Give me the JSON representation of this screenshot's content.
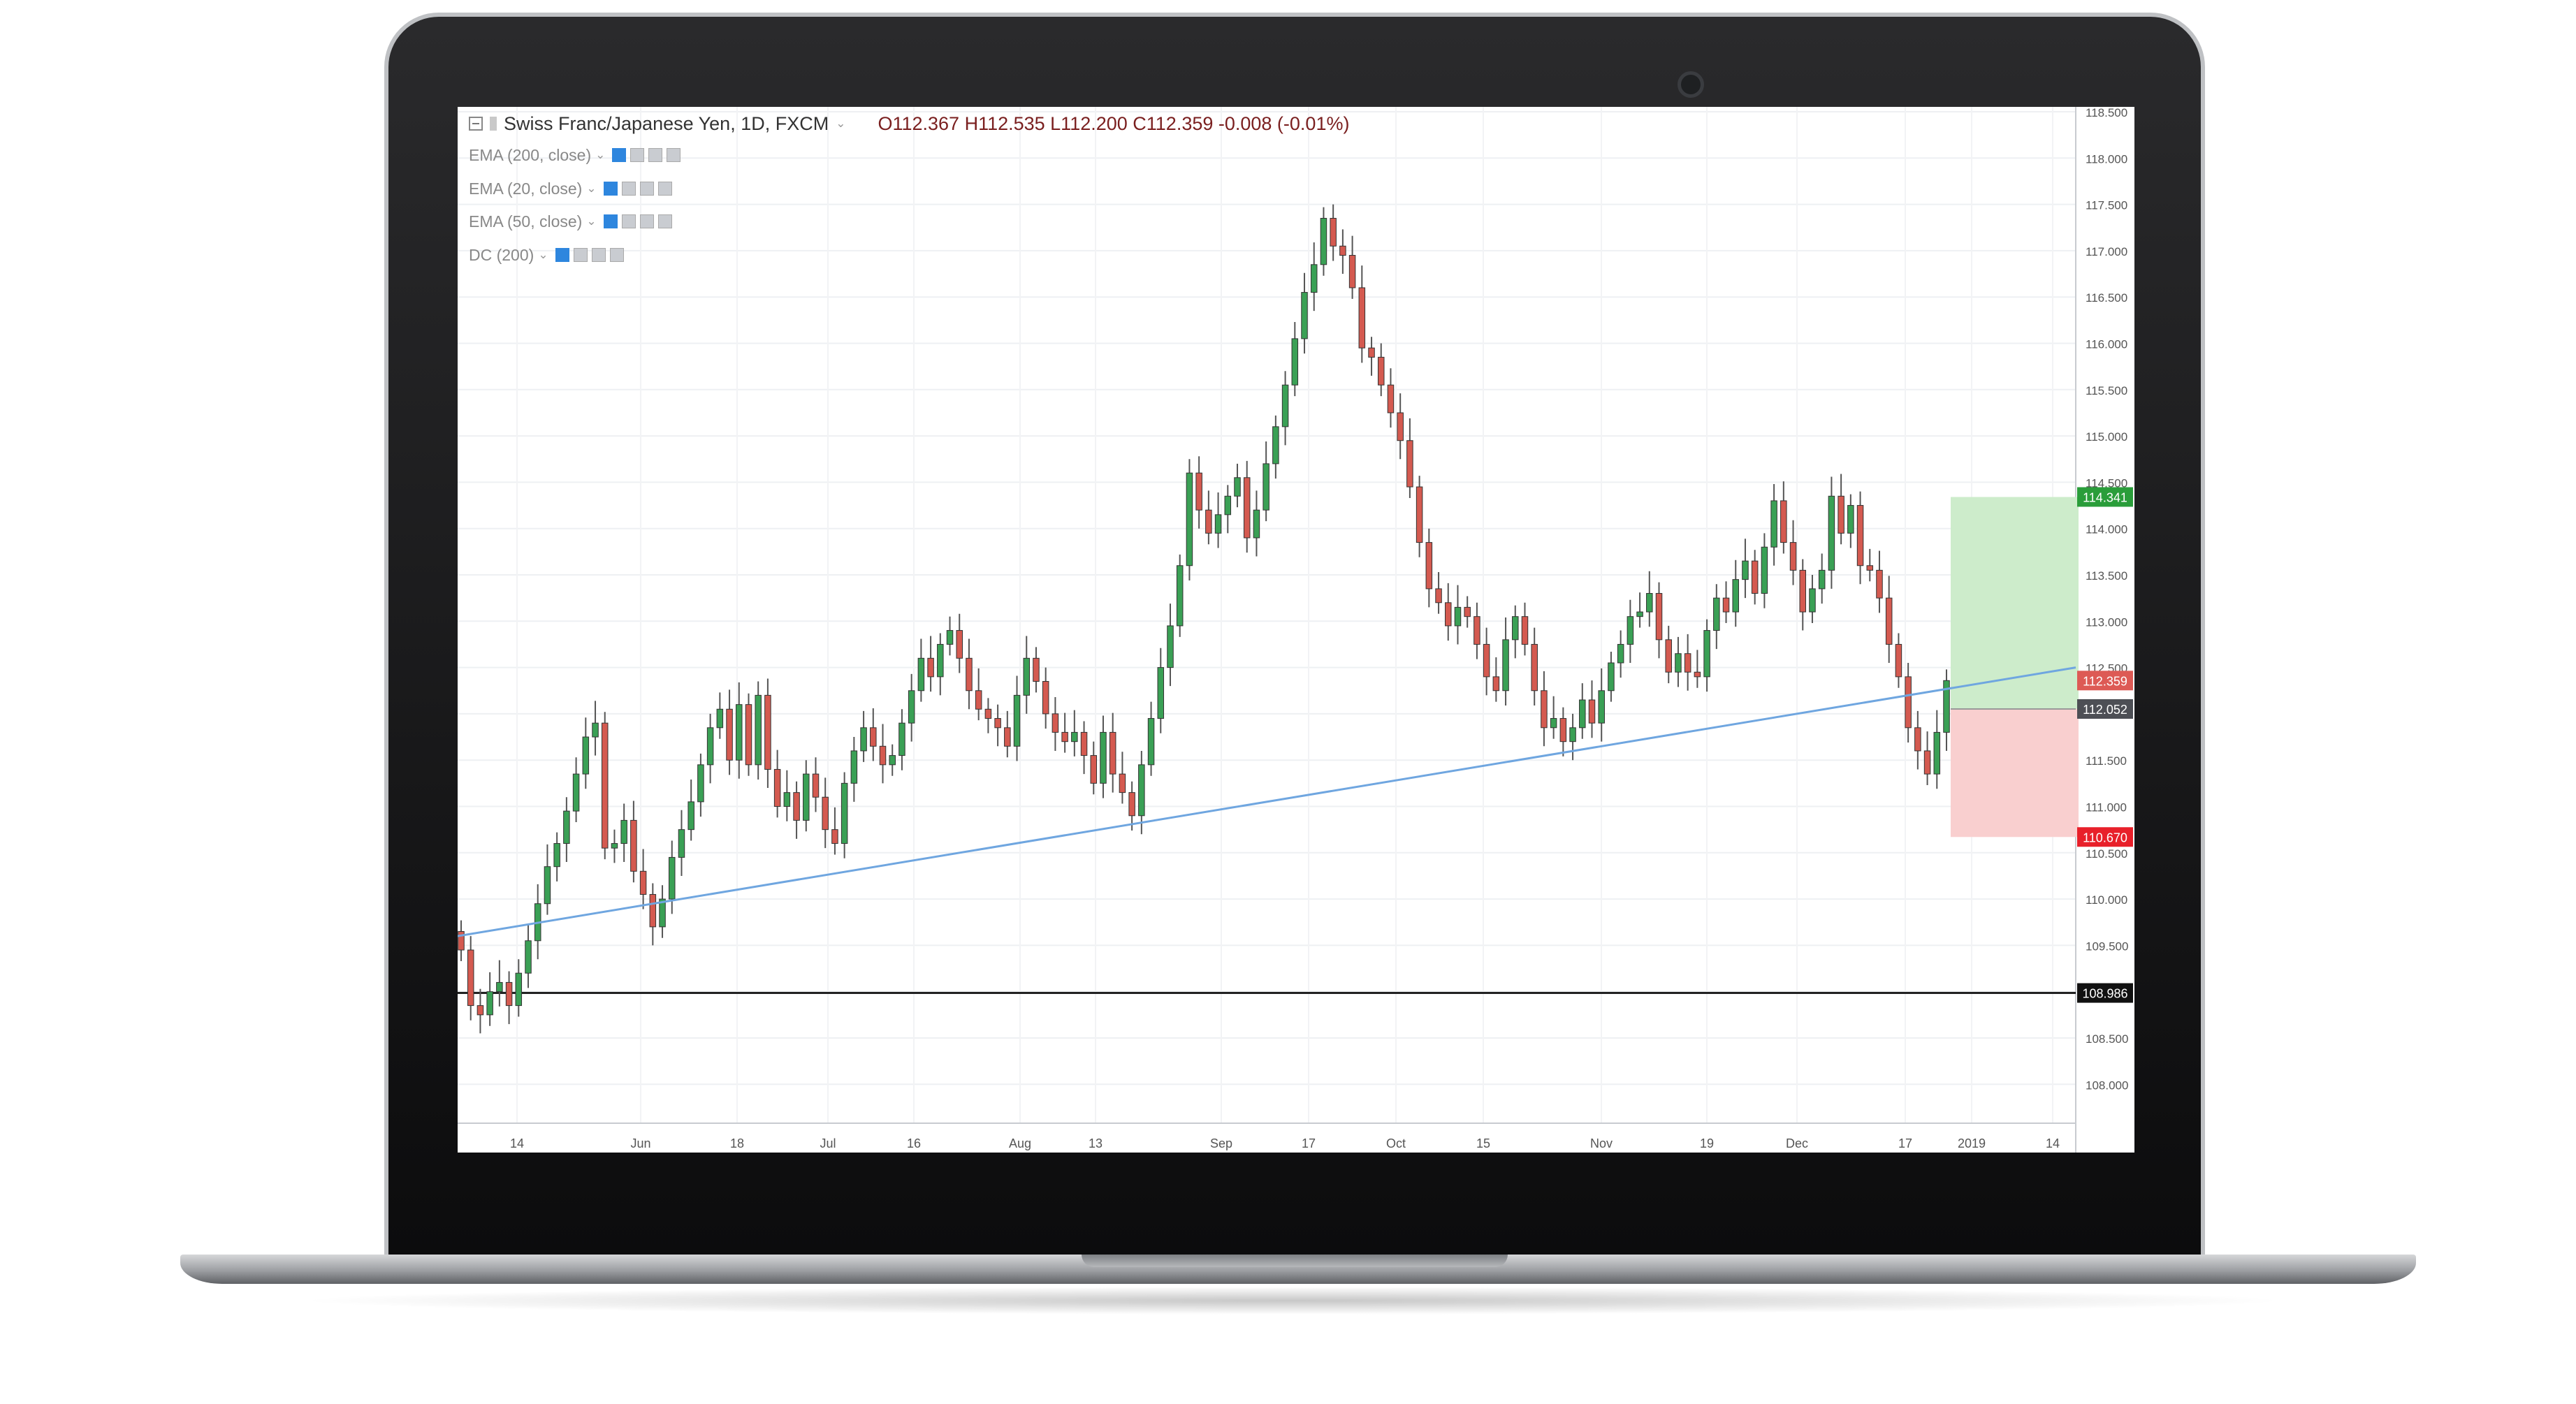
{
  "chart_header": {
    "symbol": "Swiss Franc/Japanese Yen, 1D, FXCM",
    "ohlc": "O112.367  H112.535  L112.200  C112.359  -0.008 (-0.01%)"
  },
  "indicators": [
    {
      "label": "EMA (200, close)"
    },
    {
      "label": "EMA (20, close)"
    },
    {
      "label": "EMA (50, close)"
    },
    {
      "label": "DC (200)"
    }
  ],
  "colors": {
    "up": "#3aa055",
    "down": "#d45a50",
    "trendline": "#6fa6e0",
    "support": "#222222",
    "target_zone": "#cdeccb",
    "stop_zone": "#f9cfcf",
    "target_label": "#2a9d3a",
    "stop_label": "#e8202a",
    "current_label": "#dd5a55",
    "entry_label": "#4d4f55"
  },
  "chart_data": {
    "type": "candlestick",
    "ylim": [
      107.9,
      119.0
    ],
    "y_ticks": [
      "108.000",
      "108.500",
      "109.000",
      "109.500",
      "110.000",
      "110.500",
      "111.000",
      "111.500",
      "112.000",
      "112.500",
      "113.000",
      "113.500",
      "114.000",
      "114.500",
      "115.000",
      "115.500",
      "116.000",
      "116.500",
      "117.000",
      "117.500",
      "118.000",
      "118.500"
    ],
    "x_labels": [
      "14",
      "Jun",
      "18",
      "Jul",
      "16",
      "Aug",
      "13",
      "Sep",
      "17",
      "Oct",
      "15",
      "Nov",
      "19",
      "Dec",
      "17",
      "2019",
      "14"
    ],
    "close_prices": [
      109.45,
      108.85,
      108.75,
      109.0,
      109.1,
      108.85,
      109.2,
      109.55,
      109.95,
      110.35,
      110.6,
      110.95,
      111.35,
      111.75,
      111.9,
      110.55,
      110.6,
      110.85,
      110.3,
      110.05,
      109.7,
      110.0,
      110.45,
      110.75,
      111.05,
      111.45,
      111.85,
      112.05,
      111.5,
      112.1,
      111.45,
      112.2,
      111.4,
      111.0,
      111.15,
      110.85,
      111.35,
      111.1,
      110.75,
      110.6,
      111.25,
      111.6,
      111.85,
      111.65,
      111.45,
      111.55,
      111.9,
      112.25,
      112.6,
      112.4,
      112.75,
      112.9,
      112.6,
      112.25,
      112.05,
      111.95,
      111.85,
      111.65,
      112.2,
      112.6,
      112.35,
      112.0,
      111.8,
      111.7,
      111.8,
      111.55,
      111.25,
      111.8,
      111.35,
      111.15,
      110.9,
      111.45,
      111.95,
      112.5,
      112.95,
      113.6,
      114.6,
      114.2,
      113.95,
      114.15,
      114.35,
      114.55,
      113.9,
      114.2,
      114.7,
      115.1,
      115.55,
      116.05,
      116.55,
      116.85,
      117.35,
      117.05,
      116.95,
      116.6,
      115.95,
      115.85,
      115.55,
      115.25,
      114.95,
      114.45,
      113.85,
      113.35,
      113.2,
      112.95,
      113.15,
      113.05,
      112.75,
      112.4,
      112.25,
      112.8,
      113.05,
      112.75,
      112.25,
      111.85,
      111.95,
      111.7,
      111.85,
      112.15,
      111.9,
      112.25,
      112.55,
      112.75,
      113.05,
      113.1,
      113.3,
      112.8,
      112.45,
      112.65,
      112.45,
      112.4,
      112.9,
      113.25,
      113.1,
      113.45,
      113.65,
      113.3,
      113.8,
      114.3,
      113.85,
      113.55,
      113.1,
      113.35,
      113.55,
      114.35,
      113.95,
      114.25,
      113.6,
      113.55,
      113.25,
      112.75,
      112.4,
      111.85,
      111.6,
      111.35,
      111.8,
      112.359
    ],
    "trendline": {
      "from": {
        "x": "14",
        "y": 109.6
      },
      "to": {
        "x": "14",
        "y": 112.5
      }
    },
    "support_level": 108.986,
    "projection": {
      "target": 114.341,
      "entry": 112.052,
      "stop": 110.67
    },
    "price_labels": {
      "target": "114.341",
      "current": "112.359",
      "entry": "112.052",
      "stop": "110.670",
      "support": "108.986"
    }
  }
}
